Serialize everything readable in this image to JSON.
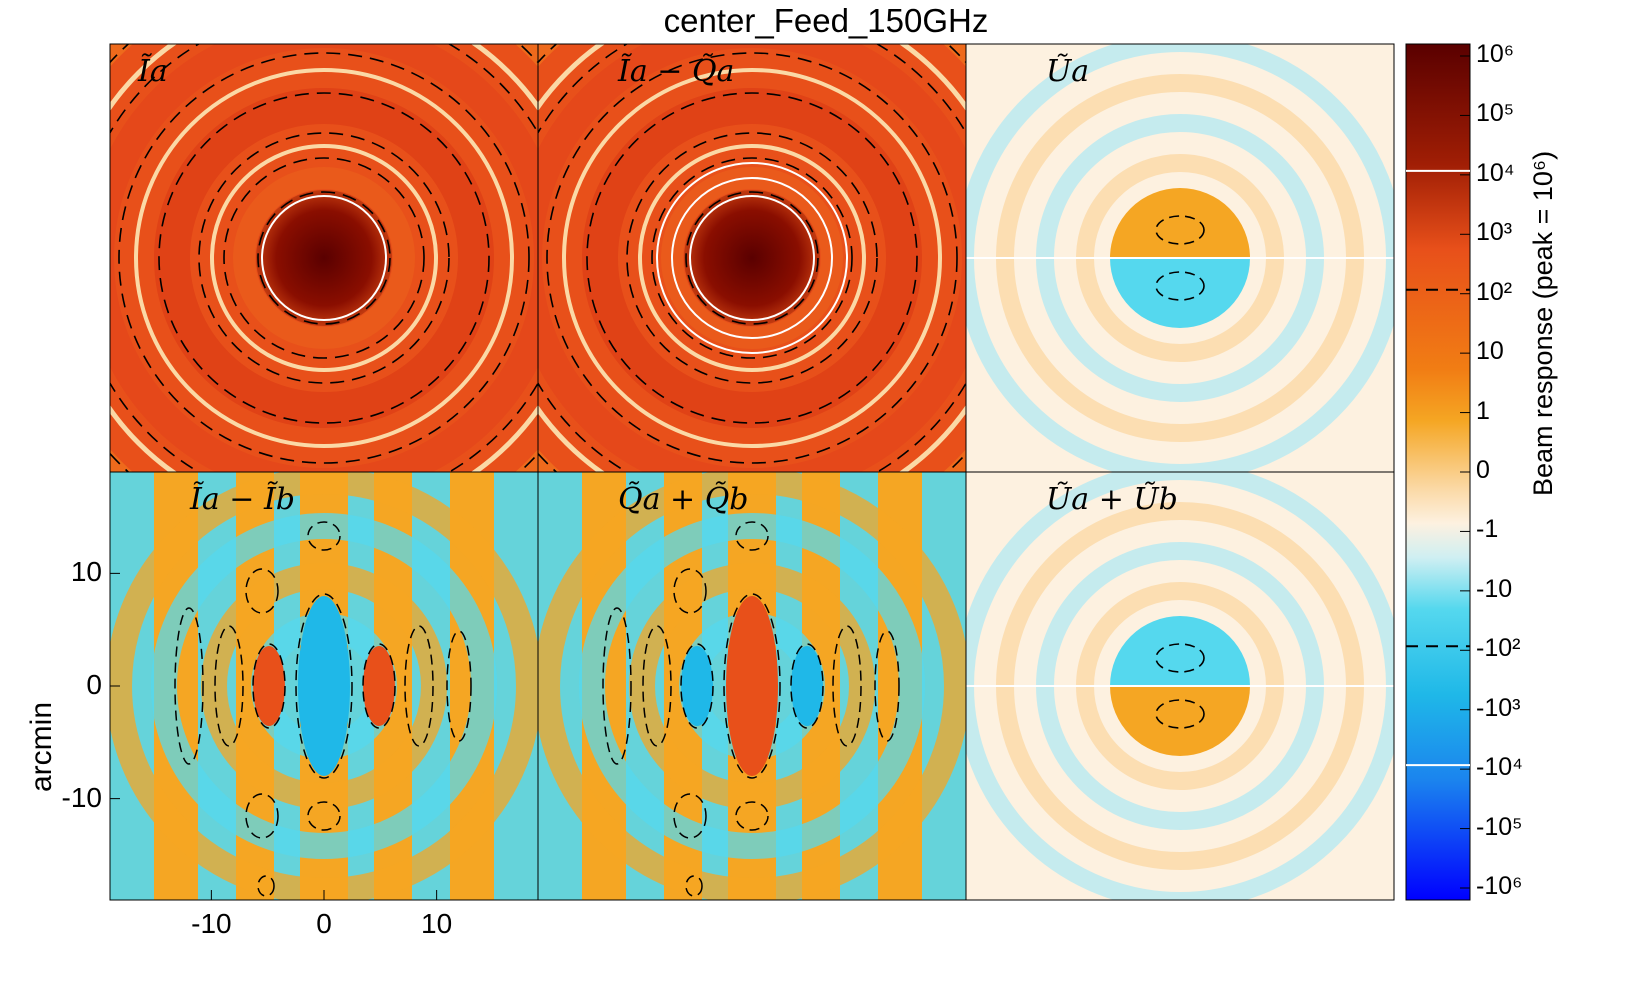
{
  "title": "center_Feed_150GHz",
  "ylabel": "arcmin",
  "colorbar_label": "Beam response (peak = 10⁶)",
  "panels": [
    {
      "label": "Ĩa",
      "kind": "intensity"
    },
    {
      "label": "Ĩa − Q̃a",
      "kind": "intensity"
    },
    {
      "label": "Ũa",
      "kind": "splitpos"
    },
    {
      "label": "Ĩa − Ĩb",
      "kind": "checker"
    },
    {
      "label": "Q̃a + Q̃b",
      "kind": "checker2"
    },
    {
      "label": "Ũa + Ũb",
      "kind": "splitneg"
    }
  ],
  "x_ticks": [
    "-10",
    "0",
    "10"
  ],
  "y_ticks": [
    "10",
    "0",
    "-10"
  ],
  "colorbar_ticks": [
    "10⁶",
    "10⁵",
    "10⁴",
    "10³",
    "10²",
    "10",
    "1",
    "0",
    "-1",
    "-10",
    "-10²",
    "-10³",
    "-10⁴",
    "-10⁵",
    "-10⁶"
  ],
  "chart_data": {
    "type": "heatmap",
    "title": "center_Feed_150GHz",
    "ylabel": "arcmin",
    "xlabel": "",
    "xlim": [
      -19,
      19
    ],
    "ylim": [
      -19,
      19
    ],
    "colorscale_ticks": [
      1000000,
      100000,
      10000,
      1000,
      100,
      10,
      1,
      0,
      -1,
      -10,
      -100,
      -1000,
      -10000,
      -100000,
      -1000000
    ],
    "colorscale_label": "Beam response (peak = 10^6)",
    "contours_white": [
      10000,
      -10000
    ],
    "contours_dashed": [
      100,
      -100
    ],
    "colors": {
      "pos_high": "#5a0000",
      "pos_mid": "#e8501a",
      "pos_low": "#f5a623",
      "zero": "#fdf1e0",
      "neg_low": "#55d8ee",
      "neg_mid": "#1fb8e8",
      "neg_high": "#0000ff"
    }
  }
}
